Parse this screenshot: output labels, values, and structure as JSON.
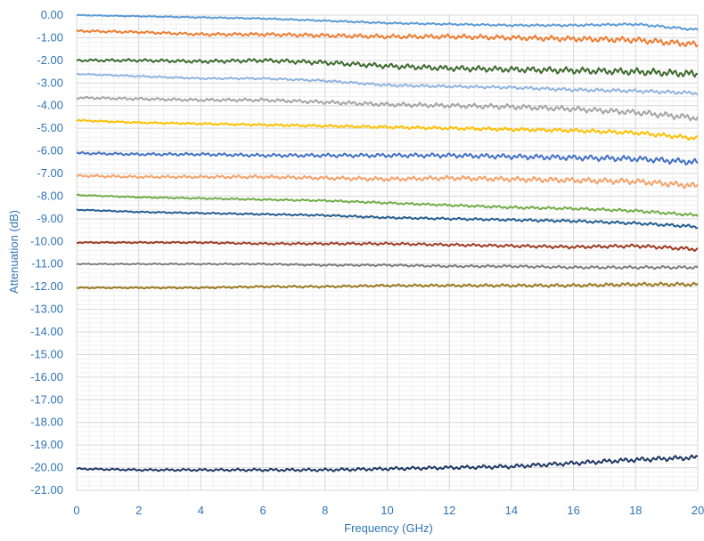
{
  "chart_data": {
    "type": "line",
    "title": "",
    "xlabel": "Frequency (GHz)",
    "ylabel": "Attenuation (dB)",
    "xlim": [
      0,
      20
    ],
    "ylim": [
      -21,
      0
    ],
    "grid": true,
    "legend": "none",
    "x_ticks": [
      "0",
      "2",
      "4",
      "6",
      "8",
      "10",
      "12",
      "14",
      "16",
      "18",
      "20"
    ],
    "y_ticks": [
      "0.00",
      "-1.00",
      "-2.00",
      "-3.00",
      "-4.00",
      "-5.00",
      "-6.00",
      "-7.00",
      "-8.00",
      "-9.00",
      "-10.00",
      "-11.00",
      "-12.00",
      "-13.00",
      "-14.00",
      "-15.00",
      "-16.00",
      "-17.00",
      "-18.00",
      "-19.00",
      "-20.00",
      "-21.00"
    ],
    "x": [
      0,
      2,
      4,
      6,
      8,
      10,
      12,
      14,
      16,
      18,
      20
    ],
    "series": [
      {
        "color": "#5b9bd5",
        "noise": 0.04,
        "values": [
          0.0,
          -0.05,
          -0.1,
          -0.15,
          -0.25,
          -0.35,
          -0.4,
          -0.45,
          -0.45,
          -0.4,
          -0.65
        ]
      },
      {
        "color": "#ed7d31",
        "noise": 0.1,
        "values": [
          -0.7,
          -0.75,
          -0.85,
          -0.85,
          -0.9,
          -0.95,
          -0.95,
          -1.0,
          -1.05,
          -1.1,
          -1.3
        ]
      },
      {
        "color": "#3d6b2f",
        "noise": 0.12,
        "values": [
          -2.0,
          -2.0,
          -2.05,
          -2.0,
          -2.1,
          -2.25,
          -2.35,
          -2.4,
          -2.45,
          -2.5,
          -2.6
        ]
      },
      {
        "color": "#8fb4e0",
        "noise": 0.06,
        "values": [
          -2.6,
          -2.7,
          -2.8,
          -2.8,
          -2.9,
          -3.1,
          -3.15,
          -3.2,
          -3.3,
          -3.35,
          -3.45
        ]
      },
      {
        "color": "#a5a5a5",
        "noise": 0.1,
        "values": [
          -3.65,
          -3.7,
          -3.75,
          -3.75,
          -3.85,
          -3.95,
          -4.0,
          -4.05,
          -4.15,
          -4.3,
          -4.55
        ]
      },
      {
        "color": "#ffc000",
        "noise": 0.07,
        "values": [
          -4.65,
          -4.75,
          -4.8,
          -4.85,
          -4.9,
          -4.95,
          -5.0,
          -5.05,
          -5.1,
          -5.2,
          -5.45
        ]
      },
      {
        "color": "#4472c4",
        "noise": 0.1,
        "values": [
          -6.1,
          -6.15,
          -6.15,
          -6.2,
          -6.2,
          -6.2,
          -6.2,
          -6.25,
          -6.3,
          -6.35,
          -6.5
        ]
      },
      {
        "color": "#f4a26a",
        "noise": 0.1,
        "values": [
          -7.1,
          -7.15,
          -7.15,
          -7.15,
          -7.2,
          -7.25,
          -7.2,
          -7.25,
          -7.3,
          -7.35,
          -7.55
        ]
      },
      {
        "color": "#70ad47",
        "noise": 0.05,
        "values": [
          -7.95,
          -8.05,
          -8.1,
          -8.15,
          -8.2,
          -8.3,
          -8.4,
          -8.5,
          -8.55,
          -8.65,
          -8.85
        ]
      },
      {
        "color": "#255e91",
        "noise": 0.05,
        "values": [
          -8.6,
          -8.7,
          -8.75,
          -8.8,
          -8.85,
          -8.95,
          -9.0,
          -9.05,
          -9.1,
          -9.2,
          -9.35
        ]
      },
      {
        "color": "#9e3d22",
        "noise": 0.06,
        "values": [
          -10.05,
          -10.05,
          -10.05,
          -10.1,
          -10.1,
          -10.1,
          -10.15,
          -10.2,
          -10.25,
          -10.2,
          -10.35
        ]
      },
      {
        "color": "#7f7f7f",
        "noise": 0.05,
        "values": [
          -11.0,
          -11.0,
          -11.0,
          -11.0,
          -11.05,
          -11.05,
          -11.1,
          -11.1,
          -11.15,
          -11.15,
          -11.15
        ]
      },
      {
        "color": "#9c7a1e",
        "noise": 0.06,
        "values": [
          -12.05,
          -12.05,
          -12.05,
          -12.0,
          -12.0,
          -11.95,
          -11.95,
          -11.95,
          -11.95,
          -11.9,
          -11.9
        ]
      },
      {
        "color": "#1f3864",
        "noise": 0.08,
        "values": [
          -20.05,
          -20.1,
          -20.1,
          -20.1,
          -20.1,
          -20.05,
          -20.0,
          -19.95,
          -19.8,
          -19.65,
          -19.55
        ]
      }
    ]
  }
}
